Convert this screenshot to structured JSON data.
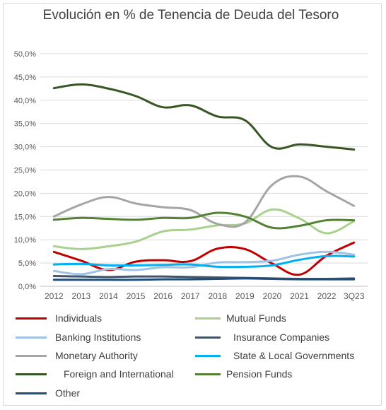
{
  "chart_data": {
    "type": "line",
    "title": "Evolución en % de Tenencia de Deuda del Tesoro",
    "xlabel": "",
    "ylabel": "",
    "ylim": [
      0,
      50
    ],
    "yticks": [
      "0,0%",
      "5,0%",
      "10,0%",
      "15,0%",
      "20,0%",
      "25,0%",
      "30,0%",
      "35,0%",
      "40,0%",
      "45,0%",
      "50,0%"
    ],
    "categories": [
      "2012",
      "2013",
      "2014",
      "2015",
      "2016",
      "2017",
      "2018",
      "2019",
      "2020",
      "2021",
      "2022",
      "3Q23"
    ],
    "grid": true,
    "legend_position": "bottom",
    "series": [
      {
        "name": "Individuals",
        "color": "#c00000",
        "values": [
          7.4,
          5.5,
          3.5,
          5.3,
          5.6,
          5.4,
          8.1,
          8.0,
          4.9,
          2.5,
          6.6,
          9.4
        ]
      },
      {
        "name": "Mutual Funds",
        "color": "#a9d18e",
        "values": [
          8.6,
          8.0,
          8.6,
          9.6,
          11.8,
          12.2,
          13.1,
          13.5,
          16.5,
          14.6,
          11.4,
          14.0
        ]
      },
      {
        "name": "Banking Institutions",
        "color": "#9dc3e6",
        "values": [
          3.3,
          2.6,
          3.7,
          3.5,
          4.1,
          4.1,
          5.1,
          5.2,
          5.5,
          6.8,
          7.4,
          6.8
        ]
      },
      {
        "name": "Insurance Companies",
        "color": "#44546a",
        "values": [
          2.2,
          2.1,
          2.0,
          2.1,
          2.1,
          2.0,
          1.9,
          1.8,
          1.7,
          1.6,
          1.6,
          1.7
        ]
      },
      {
        "name": "Monetary Authority",
        "color": "#a5a5a5",
        "values": [
          15.0,
          17.6,
          19.2,
          17.8,
          17.0,
          16.4,
          13.4,
          13.7,
          21.8,
          23.6,
          20.4,
          17.3
        ]
      },
      {
        "name": "State & Local Governments",
        "color": "#00b0f0",
        "values": [
          4.7,
          4.8,
          4.5,
          4.5,
          4.6,
          4.7,
          4.2,
          4.2,
          4.5,
          5.7,
          6.5,
          6.4
        ]
      },
      {
        "name": "Foreign and International",
        "color": "#375623",
        "values": [
          42.6,
          43.4,
          42.5,
          40.9,
          38.5,
          38.9,
          36.5,
          35.7,
          29.9,
          30.5,
          30.0,
          29.4
        ]
      },
      {
        "name": "Pension Funds",
        "color": "#548235",
        "values": [
          14.3,
          14.7,
          14.5,
          14.3,
          14.7,
          14.7,
          15.8,
          15.0,
          12.6,
          13.0,
          14.2,
          14.2
        ]
      },
      {
        "name": "Other",
        "color": "#1f4e79",
        "values": [
          1.4,
          1.4,
          1.4,
          1.4,
          1.5,
          1.5,
          1.6,
          1.7,
          1.6,
          1.5,
          1.5,
          1.5
        ]
      }
    ]
  }
}
